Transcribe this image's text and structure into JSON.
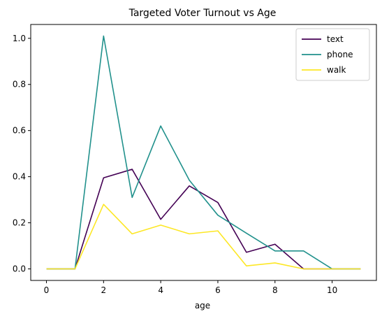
{
  "chart_data": {
    "type": "line",
    "title": "Targeted Voter Turnout vs Age",
    "xlabel": "age",
    "ylabel": "",
    "x": [
      0,
      1,
      2,
      3,
      4,
      5,
      6,
      7,
      8,
      9,
      10,
      11
    ],
    "xlim": [
      -0.55,
      11.55
    ],
    "ylim": [
      -0.05,
      1.06
    ],
    "xticks": [
      0,
      2,
      4,
      6,
      8,
      10
    ],
    "xtick_labels": [
      "0",
      "2",
      "4",
      "6",
      "8",
      "10"
    ],
    "yticks": [
      0.0,
      0.2,
      0.4,
      0.6,
      0.8,
      1.0
    ],
    "ytick_labels": [
      "0.0",
      "0.2",
      "0.4",
      "0.6",
      "0.8",
      "1.0"
    ],
    "grid": false,
    "legend_position": "top-right",
    "series": [
      {
        "name": "text",
        "color": "#440154",
        "values": [
          0.0,
          0.0,
          0.395,
          0.432,
          0.215,
          0.36,
          0.288,
          0.072,
          0.107,
          0.0,
          0.0,
          0.0
        ]
      },
      {
        "name": "phone",
        "color": "#21918c",
        "values": [
          0.0,
          0.0,
          1.01,
          0.31,
          0.62,
          0.385,
          0.233,
          0.155,
          0.078,
          0.078,
          0.0,
          0.0
        ]
      },
      {
        "name": "walk",
        "color": "#fde725",
        "values": [
          0.0,
          0.0,
          0.28,
          0.152,
          0.19,
          0.152,
          0.165,
          0.013,
          0.026,
          0.0,
          0.0,
          0.0
        ]
      }
    ]
  }
}
